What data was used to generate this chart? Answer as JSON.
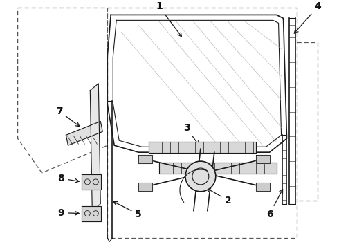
{
  "bg_color": "#ffffff",
  "line_color": "#1a1a1a",
  "dash_color": "#555555",
  "figsize": [
    4.9,
    3.6
  ],
  "dpi": 100
}
